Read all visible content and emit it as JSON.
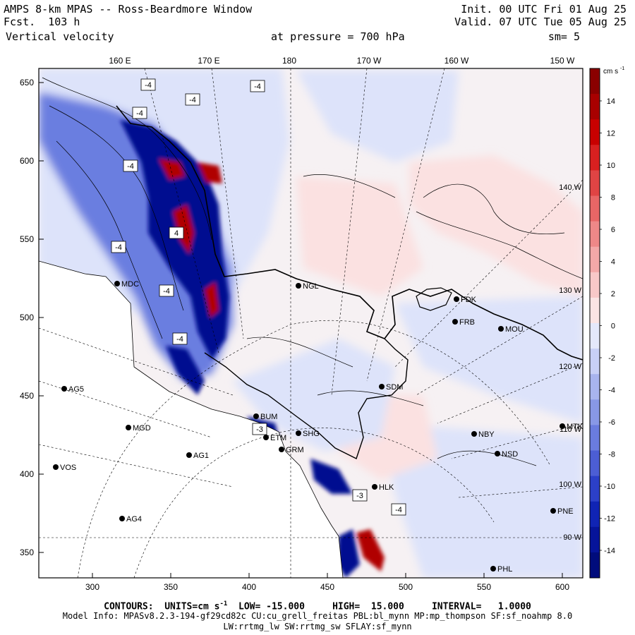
{
  "header": {
    "title": "AMPS 8-km MPAS -- Ross-Beardmore Window",
    "fcst_label": "Fcst.",
    "fcst_hours": "103 h",
    "field": "Vertical velocity",
    "init": "Init. 00 UTC Fri 01 Aug 25",
    "valid": "Valid. 07 UTC Tue 05 Aug 25",
    "pressure_label": "at pressure =",
    "pressure_value": "700 hPa",
    "smoothing": "sm= 5"
  },
  "axes": {
    "top_lon_labels": [
      "160 E",
      "170 E",
      "180",
      "170 W",
      "160 W",
      "150 W"
    ],
    "x_ticks": [
      "300",
      "350",
      "400",
      "450",
      "500",
      "550",
      "600"
    ],
    "y_ticks": [
      "650",
      "600",
      "550",
      "500",
      "450",
      "400",
      "350"
    ],
    "right_lon_labels": [
      "140 W",
      "130 W",
      "120 W",
      "110 W",
      "100 W",
      "90 W"
    ]
  },
  "colorbar": {
    "units": "cm s",
    "units_exp": "-1",
    "labels": [
      "14",
      "12",
      "10",
      "8",
      "6",
      "4",
      "2",
      "0",
      "-2",
      "-4",
      "-6",
      "-8",
      "-10",
      "-12",
      "-14"
    ],
    "positive_colors": [
      "#fbe4e4",
      "#f8c8c8",
      "#f3a8a8",
      "#ee8888",
      "#e86666",
      "#e04444",
      "#d82020",
      "#c80000",
      "#a80000",
      "#8a0000"
    ],
    "negative_colors": [
      "#e4e8fb",
      "#c8d0f6",
      "#a8b4ee",
      "#8898e6",
      "#6a7cde",
      "#4c5ed4",
      "#2c40c8",
      "#1024b4",
      "#06149a",
      "#000c7c"
    ]
  },
  "map": {
    "colors": {
      "positive": "#e87878",
      "strong_positive": "#b00000",
      "negative": "#6a7ee0",
      "strong_negative": "#001090",
      "weak_positive": "#fbe1e1",
      "weak_negative": "#dde3fa",
      "coast": "#000000"
    },
    "stations": [
      {
        "code": "MDC"
      },
      {
        "code": "NGL"
      },
      {
        "code": "FDK"
      },
      {
        "code": "FRB"
      },
      {
        "code": "MOU"
      },
      {
        "code": "AG5"
      },
      {
        "code": "SDM"
      },
      {
        "code": "BUM"
      },
      {
        "code": "MGD"
      },
      {
        "code": "NBY"
      },
      {
        "code": "MTK"
      },
      {
        "code": "SHG"
      },
      {
        "code": "ETM"
      },
      {
        "code": "GRM"
      },
      {
        "code": "AG1"
      },
      {
        "code": "NSD"
      },
      {
        "code": "VOS"
      },
      {
        "code": "HLK"
      },
      {
        "code": "AG4"
      },
      {
        "code": "PNE"
      },
      {
        "code": "PHL"
      }
    ],
    "contour_labels": [
      "-4",
      "-4",
      "-4",
      "-4",
      "-4",
      "-4",
      "-4",
      "-4",
      "4",
      "-3",
      "-3",
      "-4"
    ]
  },
  "footer": {
    "contours": "CONTOURS:  UNITS=cm s",
    "contours_exp": "-1",
    "low": "LOW= -15.000",
    "high": "HIGH=  15.000",
    "interval": "INTERVAL=   1.0000",
    "model_info": "Model Info: MPASv8.2.3-194-gf29cd82c CU:cu_grell_freitas PBL:bl_mynn MP:mp_thompson SF:sf_noahmp 8.0",
    "physics": "LW:rrtmg_lw SW:rrtmg_sw SFLAY:sf_mynn"
  }
}
